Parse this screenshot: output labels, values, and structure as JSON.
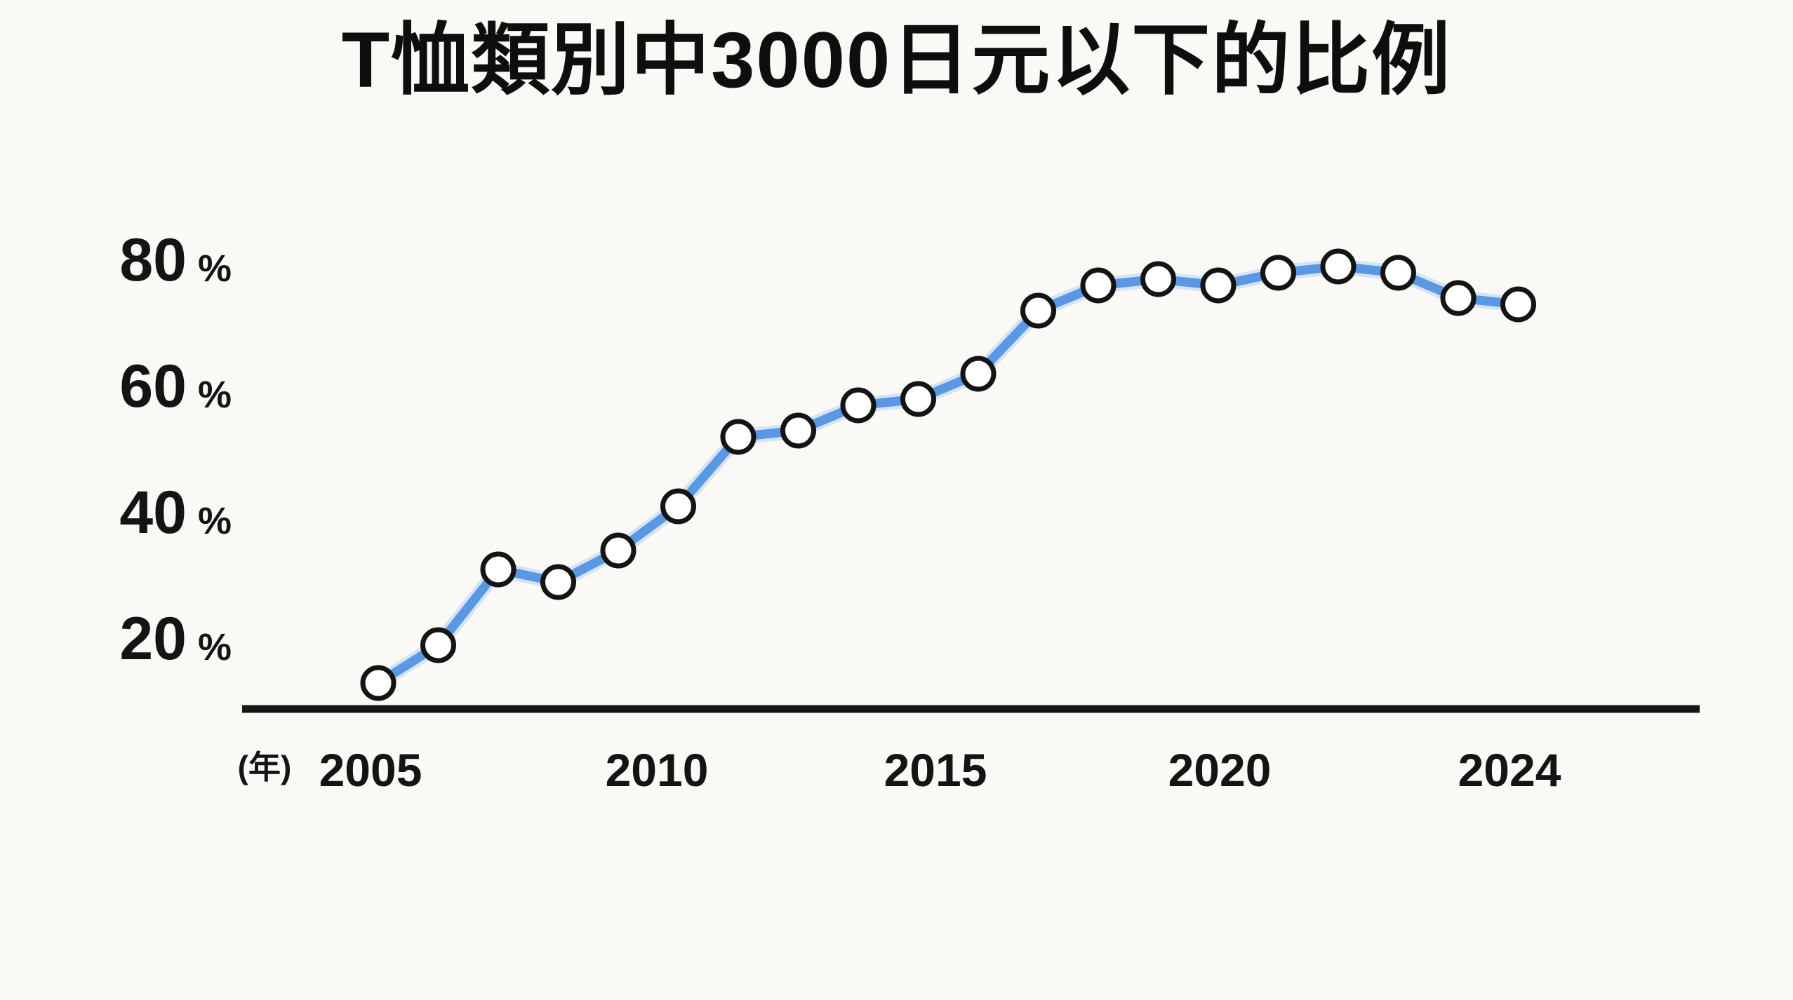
{
  "page": {
    "background_color": "#faf9f6"
  },
  "chart_data": {
    "type": "line",
    "title": "T恤類別中3000日元以下的比例",
    "x_axis_unit_label": "(年)",
    "x": [
      2005,
      2006,
      2007,
      2008,
      2009,
      2010,
      2011,
      2012,
      2013,
      2014,
      2015,
      2016,
      2017,
      2018,
      2019,
      2020,
      2021,
      2022,
      2023,
      2024
    ],
    "values": [
      13,
      19,
      31,
      29,
      34,
      41,
      52,
      53,
      57,
      58,
      62,
      72,
      76,
      77,
      76,
      78,
      79,
      78,
      74,
      73
    ],
    "x_tick_labels": [
      "2005",
      "2010",
      "2015",
      "2020",
      "2024"
    ],
    "y_tick_labels": [
      "80",
      "60",
      "40",
      "20"
    ],
    "y_tick_suffix": "%",
    "ylim": [
      0,
      100
    ],
    "xlabel": "",
    "ylabel": "",
    "grid": false,
    "legend": "none",
    "marker_style": "open-circle",
    "colors": {
      "line": "#5b98e4",
      "line_halo": "#a9c9f2",
      "marker_fill": "#ffffff",
      "marker_stroke": "#141414",
      "axis": "#161616",
      "text": "#141414",
      "background": "#faf9f6"
    }
  }
}
